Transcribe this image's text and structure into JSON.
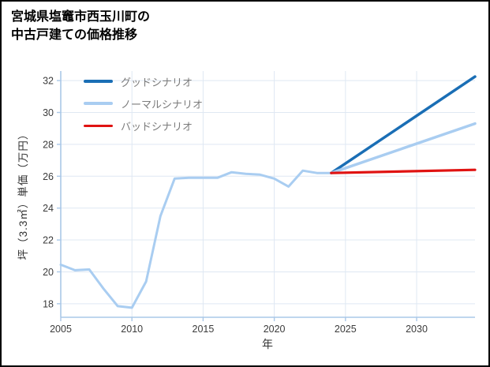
{
  "title": {
    "line1": "宮城県塩竈市西玉川町の",
    "line2": "中古戸建ての価格推移"
  },
  "chart_data": {
    "type": "line",
    "title": "宮城県塩竈市西玉川町の中古戸建ての価格推移",
    "xlabel": "年",
    "ylabel": "坪（3.3㎡）単価（万円）",
    "xlim": [
      2005,
      2034.1
    ],
    "ylim": [
      17.15,
      32.6
    ],
    "xticks": [
      2005,
      2010,
      2015,
      2020,
      2025,
      2030
    ],
    "yticks": [
      18,
      20,
      22,
      24,
      26,
      28,
      30,
      32
    ],
    "grid": true,
    "legend_position": "top-left",
    "colors": {
      "grid": "#dfe8f3",
      "axis": "#aac8e8",
      "tick_text": "#3b3b3b",
      "legend_text": "#7b7b7b"
    },
    "series": [
      {
        "id": "history",
        "name": "",
        "in_legend": false,
        "color": "#a9cdf1",
        "width": 3,
        "x": [
          2005,
          2006,
          2007,
          2008,
          2009,
          2010,
          2011,
          2012,
          2013,
          2014,
          2015,
          2016,
          2017,
          2018,
          2019,
          2020,
          2021,
          2022,
          2023,
          2024
        ],
        "y": [
          20.45,
          20.1,
          20.15,
          18.95,
          17.85,
          17.75,
          19.4,
          23.5,
          25.85,
          25.9,
          25.9,
          25.9,
          26.25,
          26.15,
          26.1,
          25.85,
          25.35,
          26.35,
          26.2,
          26.2
        ]
      },
      {
        "id": "good",
        "name": "グッドシナリオ",
        "in_legend": true,
        "color": "#1a6eb5",
        "width": 3.5,
        "x": [
          2024,
          2034.1
        ],
        "y": [
          26.2,
          32.25
        ]
      },
      {
        "id": "normal",
        "name": "ノーマルシナリオ",
        "in_legend": true,
        "color": "#a9cdf1",
        "width": 3.5,
        "x": [
          2024,
          2034.1
        ],
        "y": [
          26.2,
          29.3
        ]
      },
      {
        "id": "bad",
        "name": "バッドシナリオ",
        "in_legend": true,
        "color": "#e01312",
        "width": 3.2,
        "x": [
          2024,
          2034.1
        ],
        "y": [
          26.2,
          26.4
        ]
      }
    ]
  }
}
